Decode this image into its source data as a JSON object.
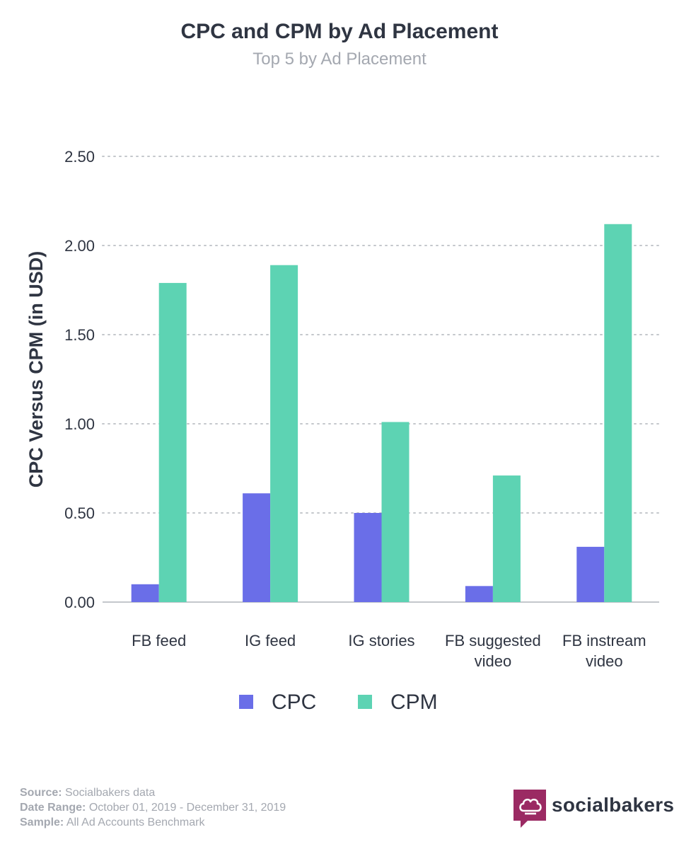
{
  "chart_data": {
    "type": "bar",
    "title": "CPC and CPM by Ad Placement",
    "subtitle": "Top 5 by Ad Placement",
    "xlabel": "",
    "ylabel": "CPC Versus CPM (in USD)",
    "categories": [
      [
        "FB feed"
      ],
      [
        "IG feed"
      ],
      [
        "IG stories"
      ],
      [
        "FB suggested",
        "video"
      ],
      [
        "FB instream",
        "video"
      ]
    ],
    "series": [
      {
        "name": "CPC",
        "color": "#6a6ee8",
        "values": [
          0.1,
          0.61,
          0.5,
          0.09,
          0.31
        ]
      },
      {
        "name": "CPM",
        "color": "#5dd3b3",
        "values": [
          1.79,
          1.89,
          1.01,
          0.71,
          2.12
        ]
      }
    ],
    "ylim": [
      0,
      2.5
    ],
    "yticks": [
      "0.00",
      "0.50",
      "1.00",
      "1.50",
      "2.00",
      "2.50"
    ],
    "grid": true,
    "legend_position": "bottom"
  },
  "footer": {
    "source_label": "Source:",
    "source_value": "Socialbakers data",
    "date_label": "Date Range:",
    "date_value": "October  01, 2019 - December 31, 2019",
    "sample_label": "Sample:",
    "sample_value": "All Ad Accounts Benchmark"
  },
  "brand": {
    "name": "socialbakers",
    "logo_icon": "chef-hat-icon",
    "color": "#9b2a63"
  }
}
